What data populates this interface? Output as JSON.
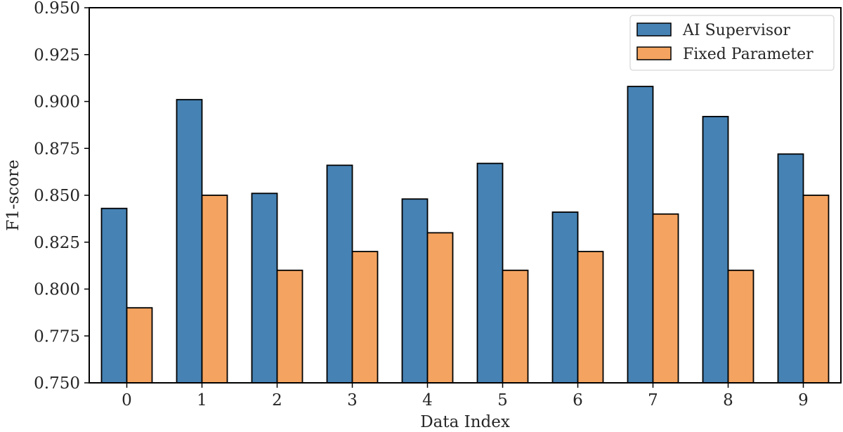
{
  "chart_data": {
    "type": "bar",
    "title": "",
    "xlabel": "Data Index",
    "ylabel": "F1-score",
    "categories": [
      "0",
      "1",
      "2",
      "3",
      "4",
      "5",
      "6",
      "7",
      "8",
      "9"
    ],
    "series": [
      {
        "name": "AI Supervisor",
        "color": "#4682b4",
        "values": [
          0.843,
          0.901,
          0.851,
          0.866,
          0.848,
          0.867,
          0.841,
          0.908,
          0.892,
          0.872
        ]
      },
      {
        "name": "Fixed Parameter",
        "color": "#f4a460",
        "values": [
          0.79,
          0.85,
          0.81,
          0.82,
          0.83,
          0.81,
          0.82,
          0.84,
          0.81,
          0.85
        ]
      }
    ],
    "ylim": [
      0.75,
      0.95
    ],
    "yticks": [
      "0.750",
      "0.775",
      "0.800",
      "0.825",
      "0.850",
      "0.875",
      "0.900",
      "0.925",
      "0.950"
    ],
    "grid": false,
    "legend_position": "top-right",
    "edge_color": "#000000"
  }
}
